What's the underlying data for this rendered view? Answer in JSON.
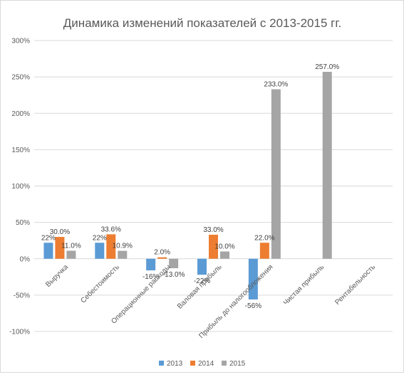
{
  "chart_data": {
    "type": "bar",
    "title": "Динамика изменений показателей с 2013-2015 гг.",
    "xlabel": "",
    "ylabel": "",
    "ylim": [
      -1.0,
      3.0
    ],
    "yticks": [
      -1.0,
      -0.5,
      0,
      0.5,
      1.0,
      1.5,
      2.0,
      2.5,
      3.0
    ],
    "ytick_labels": [
      "-100%",
      "-50%",
      "0%",
      "50%",
      "100%",
      "150%",
      "200%",
      "250%",
      "300%"
    ],
    "grid": true,
    "legend_position": "bottom",
    "categories": [
      "Выручка",
      "Себестоимость",
      "Операционные расходы",
      "Валовая прибыль",
      "Прибыль до налогообложения",
      "Чистая прибыль",
      "Рентабельность"
    ],
    "series": [
      {
        "name": "2013",
        "color": "#5b9bd5",
        "values": [
          0.22,
          0.22,
          -0.16,
          -0.22,
          -0.56,
          null,
          null
        ],
        "labels": [
          "22%",
          "22%",
          "-16%",
          "-22%",
          "-56%",
          "",
          ""
        ]
      },
      {
        "name": "2014",
        "color": "#ed7d31",
        "values": [
          0.3,
          0.336,
          0.02,
          0.33,
          0.22,
          null,
          null
        ],
        "labels": [
          "30.0%",
          "33.6%",
          "2.0%",
          "33.0%",
          "22.0%",
          "",
          ""
        ]
      },
      {
        "name": "2015",
        "color": "#a5a5a5",
        "values": [
          0.11,
          0.109,
          -0.13,
          0.1,
          2.33,
          2.57,
          null
        ],
        "labels": [
          "11.0%",
          "10.9%",
          "-13.0%",
          "10.0%",
          "233.0%",
          "257.0%",
          ""
        ]
      }
    ]
  }
}
